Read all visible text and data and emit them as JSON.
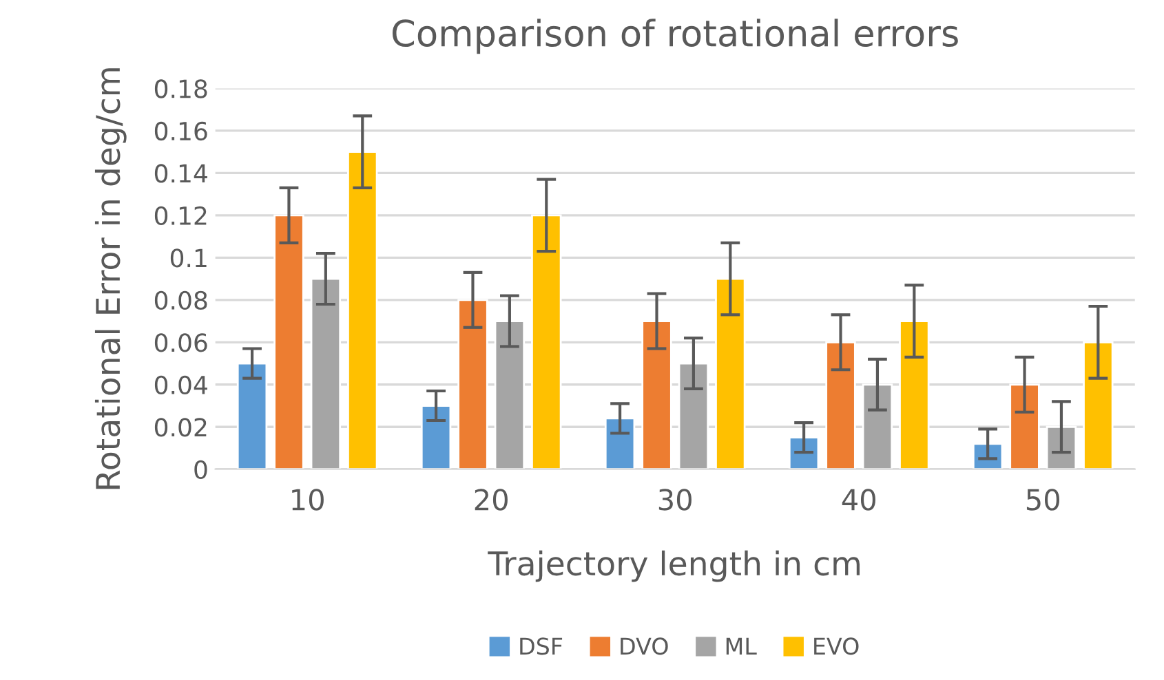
{
  "chart_data": {
    "type": "bar",
    "title": "Comparison of rotational errors",
    "xlabel": "Trajectory length in cm",
    "ylabel": "Rotational Error in deg/cm",
    "categories": [
      "10",
      "20",
      "30",
      "40",
      "50"
    ],
    "series": [
      {
        "name": "DSF",
        "color": "#5b9bd5",
        "values": [
          0.05,
          0.03,
          0.024,
          0.015,
          0.012
        ],
        "errors": [
          0.007,
          0.007,
          0.007,
          0.007,
          0.007
        ]
      },
      {
        "name": "DVO",
        "color": "#ed7d31",
        "values": [
          0.12,
          0.08,
          0.07,
          0.06,
          0.04
        ],
        "errors": [
          0.013,
          0.013,
          0.013,
          0.013,
          0.013
        ]
      },
      {
        "name": "ML",
        "color": "#a5a5a5",
        "values": [
          0.09,
          0.07,
          0.05,
          0.04,
          0.02
        ],
        "errors": [
          0.012,
          0.012,
          0.012,
          0.012,
          0.012
        ]
      },
      {
        "name": "EVO",
        "color": "#ffc000",
        "values": [
          0.15,
          0.12,
          0.09,
          0.07,
          0.06
        ],
        "errors": [
          0.017,
          0.017,
          0.017,
          0.017,
          0.017
        ]
      }
    ],
    "ylim": [
      0,
      0.18
    ],
    "yticks": [
      {
        "value": 0,
        "label": "0"
      },
      0.02,
      0.04,
      0.06,
      0.08,
      {
        "value": 0.1,
        "label": "0.1"
      },
      0.12,
      0.14,
      0.16,
      0.18
    ],
    "grid": "y",
    "legend": "bottom"
  }
}
